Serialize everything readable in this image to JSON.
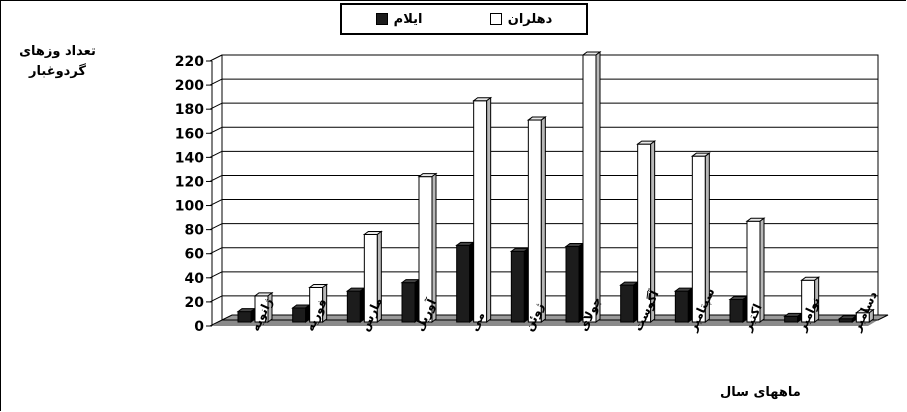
{
  "chart_data": {
    "type": "bar",
    "ylabel_lines": [
      "تعداد وزهای",
      "گردوغبار"
    ],
    "xlabel": "ماههای سال",
    "categories": [
      "ژانویه",
      "فوریه",
      "مارس",
      "آوریل",
      "می",
      "ژوئن",
      "جولای",
      "آگوست",
      "سپتامبر",
      "اکتبر",
      "نوامبر",
      "دسامبر"
    ],
    "ylim": [
      0,
      220
    ],
    "yticks": [
      0,
      20,
      40,
      60,
      80,
      100,
      120,
      140,
      160,
      180,
      200,
      220
    ],
    "legend_position": "top-center",
    "series": [
      {
        "name": "ایلام",
        "color": "#1c1c1c",
        "values": [
          7,
          10,
          24,
          31,
          62,
          57,
          61,
          29,
          24,
          17,
          3,
          1
        ]
      },
      {
        "name": "دهلران",
        "color": "#ffffff",
        "values": [
          20,
          27,
          71,
          119,
          182,
          166,
          220,
          146,
          136,
          82,
          33,
          6
        ]
      }
    ]
  }
}
